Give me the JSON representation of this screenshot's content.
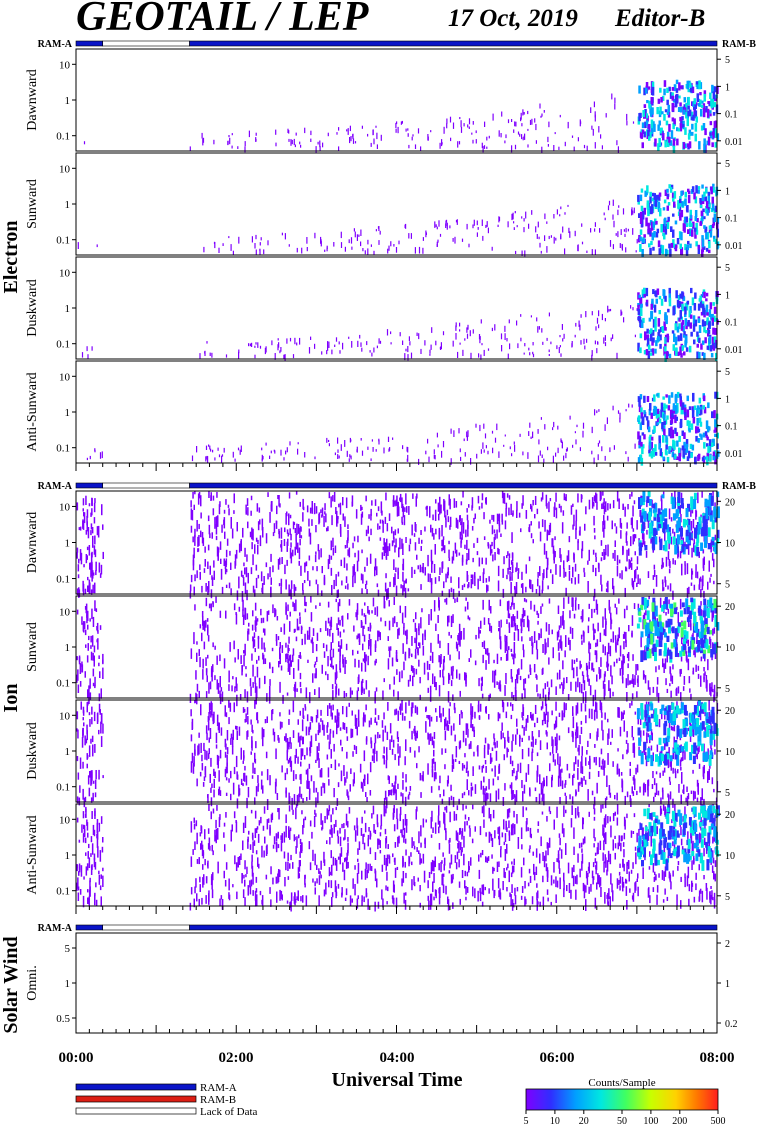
{
  "header": {
    "title": "GEOTAIL / LEP",
    "date": "17 Oct, 2019",
    "editor": "Editor-B"
  },
  "ram_labels": {
    "left": "RAM-A",
    "right": "RAM-B"
  },
  "groups": [
    {
      "name": "Electron",
      "panels": [
        "Dawnward",
        "Sunward",
        "Duskward",
        "Anti-Sunward"
      ]
    },
    {
      "name": "Ion",
      "panels": [
        "Dawnward",
        "Sunward",
        "Duskward",
        "Anti-Sunward"
      ]
    },
    {
      "name": "Solar Wind",
      "panels": [
        "Omni."
      ]
    }
  ],
  "axes": {
    "electron_left_ticks": [
      "10",
      "1",
      "0.1"
    ],
    "electron_right_ticks": [
      "5",
      "1",
      "0.1",
      "0.01"
    ],
    "ion_left_ticks": [
      "10",
      "1",
      "0.1"
    ],
    "ion_right_ticks": [
      "20",
      "10",
      "5"
    ],
    "solar_left_ticks": [
      "5",
      "1",
      "0.5"
    ],
    "solar_right_ticks": [
      "2",
      "1",
      "0.2"
    ],
    "x_ticks": [
      "00:00",
      "02:00",
      "04:00",
      "06:00",
      "08:00"
    ],
    "xlabel": "Universal Time"
  },
  "legend": {
    "items": [
      {
        "label": "RAM-A",
        "color": "#0a14c8"
      },
      {
        "label": "RAM-B",
        "color": "#dc1e14"
      },
      {
        "label": "Lack of Data",
        "color": "#ffffff"
      }
    ]
  },
  "colorbar": {
    "title": "Counts/Sample",
    "ticks": [
      "5",
      "10",
      "20",
      "50",
      "100",
      "200",
      "500"
    ],
    "colors": [
      "#7f00ff",
      "#2f2fff",
      "#00a0ff",
      "#00e8e0",
      "#40ff60",
      "#c8ff00",
      "#ffd200",
      "#ff7800",
      "#ff1e1e"
    ]
  },
  "chart_data": {
    "type": "heatmap",
    "x_range_hours": [
      0,
      8
    ],
    "ram_mode_segments": [
      {
        "mode": "RAM-A",
        "start": "00:00",
        "end": "00:20"
      },
      {
        "mode": "Lack of Data",
        "start": "00:20",
        "end": "01:25"
      },
      {
        "mode": "RAM-A",
        "start": "01:25",
        "end": "08:00"
      }
    ],
    "electron_intense_activity": {
      "start": "07:00",
      "end": "08:00"
    },
    "ion_intense_activity": {
      "start": "06:55",
      "end": "08:00"
    }
  }
}
